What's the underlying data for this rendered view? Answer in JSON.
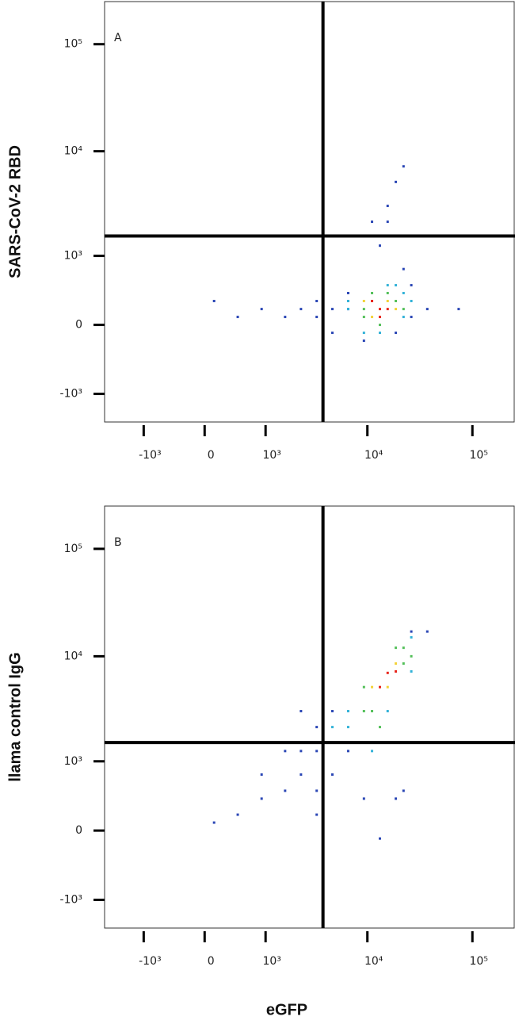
{
  "chart_data": [
    {
      "type": "scatter",
      "panel_label": "A",
      "ylabel": "SARS-CoV-2 RBD",
      "xscale": "asinh",
      "yscale": "asinh",
      "xlim": [
        -2500,
        250000
      ],
      "ylim": [
        -1900,
        250000
      ],
      "xticks": [
        {
          "value": -1000,
          "label": "-10³"
        },
        0,
        {
          "value": 1000,
          "label": "10³"
        },
        {
          "value": 10000,
          "label": "10⁴"
        },
        {
          "value": 100000,
          "label": "10⁵"
        }
      ],
      "yticks": [
        {
          "value": -1000,
          "label": "-10³"
        },
        0,
        {
          "value": 1000,
          "label": "10³"
        },
        {
          "value": 10000,
          "label": "10⁴"
        },
        {
          "value": 100000,
          "label": "10⁵"
        }
      ],
      "gates": {
        "x": 3760,
        "y": 1580
      },
      "series": [
        {
          "color": "#2a46b5",
          "x": [
            4630,
            3270,
            2300,
            1600,
            904,
            447,
            118,
            26200,
            37200,
            74000,
            9270,
            18650,
            13160,
            15600,
            15600,
            11070,
            18650,
            22100,
            6560,
            4630,
            3270,
            26200,
            6560,
            22100
          ],
          "values": [
            166,
            256,
            166,
            82,
            166,
            82,
            256,
            459,
            166,
            166,
            -166,
            -82,
            1270,
            2170,
            3070,
            2170,
            5160,
            7220,
            166,
            -82,
            82,
            82,
            353,
            722
          ]
        },
        {
          "color": "#33b2d8",
          "x": [
            6560,
            6560,
            22100,
            26200,
            18650,
            13160,
            9270,
            22100,
            15600
          ],
          "values": [
            166,
            256,
            353,
            256,
            459,
            -82,
            -82,
            82,
            459
          ]
        },
        {
          "color": "#54c05a",
          "x": [
            9270,
            18650,
            11070,
            15600,
            13160,
            9270,
            22100
          ],
          "values": [
            166,
            256,
            353,
            353,
            0,
            82,
            166
          ]
        },
        {
          "color": "#f3d33a",
          "x": [
            9270,
            15600,
            11070,
            18650
          ],
          "values": [
            256,
            256,
            82,
            166
          ]
        },
        {
          "color": "#e8261c",
          "x": [
            13160,
            11070,
            15600,
            13160
          ],
          "values": [
            166,
            256,
            166,
            82
          ]
        }
      ]
    },
    {
      "type": "scatter",
      "panel_label": "B",
      "ylabel": "llama control IgG",
      "xlabel": "eGFP",
      "xscale": "asinh",
      "yscale": "asinh",
      "xlim": [
        -2500,
        250000
      ],
      "ylim": [
        -1900,
        250000
      ],
      "xticks": [
        {
          "value": -1000,
          "label": "-10³"
        },
        0,
        {
          "value": 1000,
          "label": "10³"
        },
        {
          "value": 10000,
          "label": "10⁴"
        },
        {
          "value": 100000,
          "label": "10⁵"
        }
      ],
      "yticks": [
        {
          "value": -1000,
          "label": "-10³"
        },
        0,
        {
          "value": 1000,
          "label": "10³"
        },
        {
          "value": 10000,
          "label": "10⁴"
        },
        {
          "value": 100000,
          "label": "10⁵"
        }
      ],
      "gates": {
        "x": 3760,
        "y": 1540
      },
      "series": [
        {
          "color": "#2a46b5",
          "x": [
            3270,
            2300,
            1600,
            904,
            447,
            118,
            4630,
            3270,
            6560,
            37200,
            26200,
            22100,
            9270,
            2300,
            1600,
            3270,
            4630,
            13160,
            18650,
            3270,
            904,
            2300
          ],
          "values": [
            1270,
            722,
            459,
            353,
            166,
            82,
            722,
            459,
            1270,
            17000,
            17000,
            459,
            353,
            1270,
            1270,
            2170,
            3070,
            -82,
            353,
            166,
            722,
            3070
          ]
        },
        {
          "color": "#33b2d8",
          "x": [
            6560,
            6560,
            26200,
            4630,
            26200,
            11070,
            15600
          ],
          "values": [
            2170,
            3070,
            15000,
            2170,
            7220,
            1270,
            3070
          ]
        },
        {
          "color": "#54c05a",
          "x": [
            9270,
            11070,
            22100,
            22100,
            13160,
            18650,
            9270,
            26200
          ],
          "values": [
            3070,
            3070,
            8560,
            12000,
            2170,
            12000,
            5160,
            10000
          ]
        },
        {
          "color": "#f3d33a",
          "x": [
            11070,
            15600,
            18650
          ],
          "values": [
            5160,
            5160,
            8560
          ]
        },
        {
          "color": "#e8261c",
          "x": [
            15600,
            13160,
            18650
          ],
          "values": [
            7000,
            5160,
            7220
          ]
        }
      ]
    }
  ]
}
